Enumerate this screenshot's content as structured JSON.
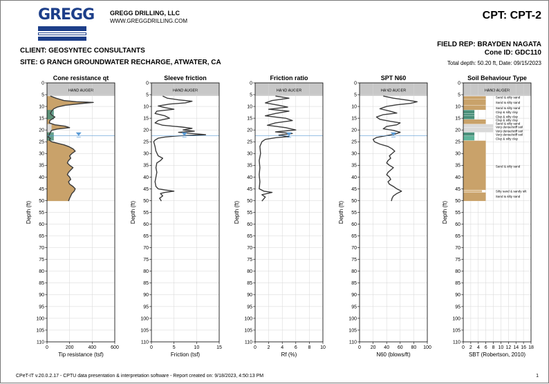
{
  "header": {
    "logo_text": "GREGG",
    "company_name": "GREGG DRILLING, LLC",
    "company_url": "WWW.GREGGDRILLING.COM",
    "cpt_title": "CPT: CPT-2",
    "client_label": "CLIENT:",
    "client_value": "GEOSYNTEC CONSULTANTS",
    "site_label": "SITE:",
    "site_value": "G RANCH GROUNDWATER RECHARGE, ATWATER, CA",
    "field_rep": "FIELD REP: BRAYDEN NAGATA",
    "cone_id": "Cone ID: GDC110",
    "total_depth": "Total depth: 50.20 ft, Date: 09/15/2023"
  },
  "footer": {
    "software_note": "CPeT-IT v.20.0.2.17 - CPTU data presentation & interpretation software - Report created on: 9/18/2023, 4:50:13 PM",
    "page_number": "1"
  },
  "colors": {
    "trace": "#3a3a3a",
    "hand_auger_fill": "#c7c7c7",
    "sand": "#c9a26a",
    "sand_silty": "#d9b98a",
    "clay": "#4a8f7a",
    "clay_light": "#5fb49a",
    "very_dense": "#d9d9d9",
    "water": "#5a9bd5",
    "grid": "#d5d5d5"
  },
  "chart_data": [
    {
      "type": "line",
      "title": "Cone resistance qt",
      "xlabel": "Tip resistance (tsf)",
      "ylabel": "Depth (ft)",
      "xlim": [
        0,
        600
      ],
      "xticks": [
        0,
        200,
        400,
        600
      ],
      "ylim": [
        0,
        110
      ],
      "yticks": [
        0,
        5,
        10,
        15,
        20,
        25,
        30,
        35,
        40,
        45,
        50,
        55,
        60,
        65,
        70,
        75,
        80,
        85,
        90,
        95,
        100,
        105,
        110
      ],
      "hand_auger_label": "HAND AUGER",
      "hand_auger_depth": 5.5,
      "water_depth": 22.5,
      "water_x": 280,
      "fill_under_trace": true,
      "points": [
        [
          30,
          5.6
        ],
        [
          80,
          6.5
        ],
        [
          150,
          7.5
        ],
        [
          260,
          8
        ],
        [
          410,
          8.3
        ],
        [
          300,
          8.8
        ],
        [
          160,
          9.5
        ],
        [
          90,
          10.3
        ],
        [
          60,
          11
        ],
        [
          40,
          12
        ],
        [
          30,
          13
        ],
        [
          45,
          13.8
        ],
        [
          70,
          14.5
        ],
        [
          50,
          15.2
        ],
        [
          25,
          16
        ],
        [
          20,
          17
        ],
        [
          70,
          17.8
        ],
        [
          160,
          18.4
        ],
        [
          200,
          19
        ],
        [
          90,
          19.6
        ],
        [
          40,
          20.2
        ],
        [
          30,
          21
        ],
        [
          20,
          22
        ],
        [
          10,
          23
        ],
        [
          30,
          23.6
        ],
        [
          20,
          24.3
        ],
        [
          40,
          25
        ],
        [
          90,
          25.6
        ],
        [
          150,
          26.3
        ],
        [
          190,
          27
        ],
        [
          230,
          28
        ],
        [
          250,
          29
        ],
        [
          220,
          30
        ],
        [
          200,
          31
        ],
        [
          210,
          32
        ],
        [
          190,
          33
        ],
        [
          180,
          34
        ],
        [
          200,
          35
        ],
        [
          230,
          36
        ],
        [
          210,
          37
        ],
        [
          190,
          38
        ],
        [
          180,
          39
        ],
        [
          200,
          40
        ],
        [
          210,
          41
        ],
        [
          190,
          42
        ],
        [
          200,
          43
        ],
        [
          230,
          44
        ],
        [
          250,
          45
        ],
        [
          240,
          46
        ],
        [
          220,
          47
        ],
        [
          210,
          48
        ],
        [
          200,
          49
        ],
        [
          190,
          50.2
        ]
      ]
    },
    {
      "type": "line",
      "title": "Sleeve friction",
      "xlabel": "Friction (tsf)",
      "ylabel": "Depth (ft)",
      "xlim": [
        0,
        15
      ],
      "xticks": [
        0,
        5,
        10,
        15
      ],
      "ylim": [
        0,
        110
      ],
      "yticks": [
        0,
        5,
        10,
        15,
        20,
        25,
        30,
        35,
        40,
        45,
        50,
        55,
        60,
        65,
        70,
        75,
        80,
        85,
        90,
        95,
        100,
        105,
        110
      ],
      "hand_auger_label": "HAND AUGER",
      "hand_auger_depth": 5.5,
      "water_depth": 22.5,
      "water_x": 7.3,
      "fill_under_trace": false,
      "points": [
        [
          2.5,
          5.6
        ],
        [
          3.5,
          6.5
        ],
        [
          6,
          7.2
        ],
        [
          9,
          7.8
        ],
        [
          7.5,
          8.5
        ],
        [
          4,
          9
        ],
        [
          1.5,
          9.8
        ],
        [
          3,
          10.5
        ],
        [
          5,
          11.2
        ],
        [
          1.2,
          12
        ],
        [
          0.8,
          13
        ],
        [
          3,
          14
        ],
        [
          4,
          15
        ],
        [
          1.5,
          16
        ],
        [
          0.8,
          17
        ],
        [
          2.5,
          18
        ],
        [
          6.5,
          18.7
        ],
        [
          9,
          19.3
        ],
        [
          7,
          20
        ],
        [
          9.5,
          20.5
        ],
        [
          6,
          21
        ],
        [
          9,
          21.5
        ],
        [
          12,
          22
        ],
        [
          6,
          22.5
        ],
        [
          3,
          23
        ],
        [
          1.5,
          23.5
        ],
        [
          0.8,
          24.3
        ],
        [
          0.5,
          25
        ],
        [
          0.8,
          27
        ],
        [
          1,
          29
        ],
        [
          1.5,
          31
        ],
        [
          2.5,
          32
        ],
        [
          2,
          33
        ],
        [
          1.2,
          34
        ],
        [
          1,
          36
        ],
        [
          1.2,
          38
        ],
        [
          1,
          40
        ],
        [
          0.8,
          42
        ],
        [
          1,
          44
        ],
        [
          1.5,
          45
        ],
        [
          3,
          45.5
        ],
        [
          5,
          46
        ],
        [
          3,
          46.5
        ],
        [
          2,
          47
        ],
        [
          2.5,
          48
        ],
        [
          1.8,
          49
        ],
        [
          2.2,
          50.2
        ]
      ]
    },
    {
      "type": "line",
      "title": "Friction ratio",
      "xlabel": "Rf (%)",
      "ylabel": "Depth (ft)",
      "xlim": [
        0,
        10
      ],
      "xticks": [
        0,
        2,
        4,
        6,
        8,
        10
      ],
      "ylim": [
        0,
        110
      ],
      "yticks": [
        0,
        5,
        10,
        15,
        20,
        25,
        30,
        35,
        40,
        45,
        50,
        55,
        60,
        65,
        70,
        75,
        80,
        85,
        90,
        95,
        100,
        105,
        110
      ],
      "hand_auger_label": "HAND AUGER",
      "hand_auger_depth": 5.5,
      "water_depth": 22.5,
      "water_x": 5,
      "fill_under_trace": false,
      "points": [
        [
          3,
          5.6
        ],
        [
          5,
          6.5
        ],
        [
          2.5,
          7.5
        ],
        [
          1.5,
          8.5
        ],
        [
          3.5,
          9.5
        ],
        [
          4.8,
          10.3
        ],
        [
          2,
          11.2
        ],
        [
          5,
          12
        ],
        [
          3,
          13
        ],
        [
          1.5,
          14
        ],
        [
          4.5,
          15
        ],
        [
          5.5,
          16
        ],
        [
          3,
          17
        ],
        [
          1.8,
          18
        ],
        [
          4.5,
          19
        ],
        [
          6,
          20
        ],
        [
          3,
          20.8
        ],
        [
          5.5,
          21.5
        ],
        [
          3.5,
          22.2
        ],
        [
          5,
          22.8
        ],
        [
          3,
          23.3
        ],
        [
          1.5,
          24
        ],
        [
          1,
          25
        ],
        [
          0.7,
          27
        ],
        [
          0.8,
          30
        ],
        [
          0.6,
          33
        ],
        [
          0.7,
          36
        ],
        [
          0.6,
          39
        ],
        [
          0.7,
          42
        ],
        [
          0.6,
          45
        ],
        [
          1.3,
          46
        ],
        [
          2.5,
          46.5
        ],
        [
          1,
          47.5
        ],
        [
          1.5,
          48.5
        ],
        [
          1,
          50.2
        ]
      ]
    },
    {
      "type": "line",
      "title": "SPT N60",
      "xlabel": "N60 (blows/ft)",
      "ylabel": "Depth (ft)",
      "xlim": [
        0,
        100
      ],
      "xticks": [
        0,
        20,
        40,
        60,
        80,
        100
      ],
      "ylim": [
        0,
        110
      ],
      "yticks": [
        0,
        5,
        10,
        15,
        20,
        25,
        30,
        35,
        40,
        45,
        50,
        55,
        60,
        65,
        70,
        75,
        80,
        85,
        90,
        95,
        100,
        105,
        110
      ],
      "hand_auger_label": "HAND AUGER",
      "hand_auger_depth": 5.5,
      "water_depth": 22.5,
      "water_x": 50,
      "fill_under_trace": false,
      "points": [
        [
          35,
          5.6
        ],
        [
          50,
          6.5
        ],
        [
          70,
          7.3
        ],
        [
          85,
          8
        ],
        [
          75,
          8.7
        ],
        [
          55,
          9.3
        ],
        [
          40,
          10
        ],
        [
          30,
          11
        ],
        [
          45,
          12
        ],
        [
          55,
          12.8
        ],
        [
          35,
          13.5
        ],
        [
          25,
          14.5
        ],
        [
          30,
          15.5
        ],
        [
          45,
          16.3
        ],
        [
          60,
          17
        ],
        [
          55,
          17.8
        ],
        [
          40,
          18.5
        ],
        [
          35,
          19.5
        ],
        [
          50,
          20.2
        ],
        [
          60,
          21
        ],
        [
          52,
          21.8
        ],
        [
          38,
          22.5
        ],
        [
          25,
          23.2
        ],
        [
          20,
          24
        ],
        [
          22,
          25
        ],
        [
          30,
          26
        ],
        [
          42,
          27
        ],
        [
          48,
          28
        ],
        [
          52,
          29
        ],
        [
          48,
          30
        ],
        [
          44,
          31
        ],
        [
          46,
          32
        ],
        [
          42,
          33
        ],
        [
          40,
          34
        ],
        [
          44,
          35
        ],
        [
          50,
          36
        ],
        [
          46,
          37
        ],
        [
          42,
          38
        ],
        [
          40,
          39
        ],
        [
          44,
          40
        ],
        [
          46,
          41
        ],
        [
          42,
          42
        ],
        [
          44,
          43
        ],
        [
          50,
          44
        ],
        [
          55,
          45
        ],
        [
          62,
          46
        ],
        [
          55,
          47
        ],
        [
          50,
          48
        ],
        [
          48,
          49
        ],
        [
          47,
          50.2
        ]
      ]
    },
    {
      "type": "bar",
      "title": "Soil Behaviour Type",
      "xlabel": "SBT (Robertson, 2010)",
      "ylabel": "Depth (ft)",
      "xlim": [
        0,
        18
      ],
      "xticks": [
        0,
        2,
        4,
        6,
        8,
        10,
        12,
        14,
        16,
        18
      ],
      "ylim": [
        0,
        110
      ],
      "yticks": [
        0,
        5,
        10,
        15,
        20,
        25,
        30,
        35,
        40,
        45,
        50,
        55,
        60,
        65,
        70,
        75,
        80,
        85,
        90,
        95,
        100,
        105,
        110
      ],
      "hand_auger_label": "HAND AUGER",
      "hand_auger_depth": 5.5,
      "layers": [
        {
          "top": 5.6,
          "bottom": 7,
          "sbt": 6,
          "label": "Sand & silty sand",
          "type": "sand"
        },
        {
          "top": 7,
          "bottom": 9.5,
          "sbt": 6,
          "label": "Sand & silty sand",
          "type": "sand"
        },
        {
          "top": 9.5,
          "bottom": 11.5,
          "sbt": 6,
          "label": "Sand & silty sand",
          "type": "sand"
        },
        {
          "top": 11.5,
          "bottom": 13,
          "sbt": 3,
          "label": "Clay & silty clay",
          "type": "clay"
        },
        {
          "top": 13,
          "bottom": 14,
          "sbt": 3,
          "label": "Clay & silty clay",
          "type": "clay"
        },
        {
          "top": 14,
          "bottom": 15.5,
          "sbt": 3,
          "label": "Clay & silty clay",
          "type": "clay"
        },
        {
          "top": 15.5,
          "bottom": 17.5,
          "sbt": 6,
          "label": "Sand & silty sand",
          "type": "sand"
        },
        {
          "top": 17.5,
          "bottom": 19,
          "sbt": 8,
          "label": "Very dense/stiff soil",
          "type": "very_dense"
        },
        {
          "top": 19,
          "bottom": 21,
          "sbt": 8,
          "label": "Very dense/stiff soil",
          "type": "very_dense"
        },
        {
          "top": 21,
          "bottom": 22.5,
          "sbt": 3,
          "label": "Clay & silty clay",
          "type": "clay"
        },
        {
          "top": 22.5,
          "bottom": 24.5,
          "sbt": 3,
          "label": "Clay & silty clay",
          "type": "clay_light"
        },
        {
          "top": 24.5,
          "bottom": 45.5,
          "sbt": 6,
          "label": "Sand & silty sand",
          "type": "sand"
        },
        {
          "top": 45.5,
          "bottom": 46.5,
          "sbt": 5,
          "label": "Silty sand & sandy silt",
          "type": "sand_silty"
        },
        {
          "top": 46.5,
          "bottom": 50.2,
          "sbt": 6,
          "label": "Sand & silty sand",
          "type": "sand"
        }
      ],
      "label_markers": [
        {
          "depth": 6.2,
          "label": "Sand & silty sand"
        },
        {
          "depth": 8.3,
          "label": "Sand & silty sand"
        },
        {
          "depth": 10.7,
          "label": "Sand & silty sand"
        },
        {
          "depth": 12.4,
          "label": "Clay & silty clay"
        },
        {
          "depth": 14.4,
          "label": "Clay & silty clay"
        },
        {
          "depth": 15.8,
          "label": "Clay & silty clay"
        },
        {
          "depth": 17.3,
          "label": "Sand & silty sand"
        },
        {
          "depth": 18.8,
          "label": "Very dense/stiff soil"
        },
        {
          "depth": 20.5,
          "label": "Very dense/stiff soil"
        },
        {
          "depth": 22,
          "label": "Very dense/stiff soil"
        },
        {
          "depth": 23.8,
          "label": "Clay & silty clay"
        },
        {
          "depth": 35.5,
          "label": "Sand & silty sand"
        },
        {
          "depth": 46,
          "label": "Silty sand & sandy silt"
        },
        {
          "depth": 48.2,
          "label": "Sand & silty sand"
        }
      ]
    }
  ]
}
